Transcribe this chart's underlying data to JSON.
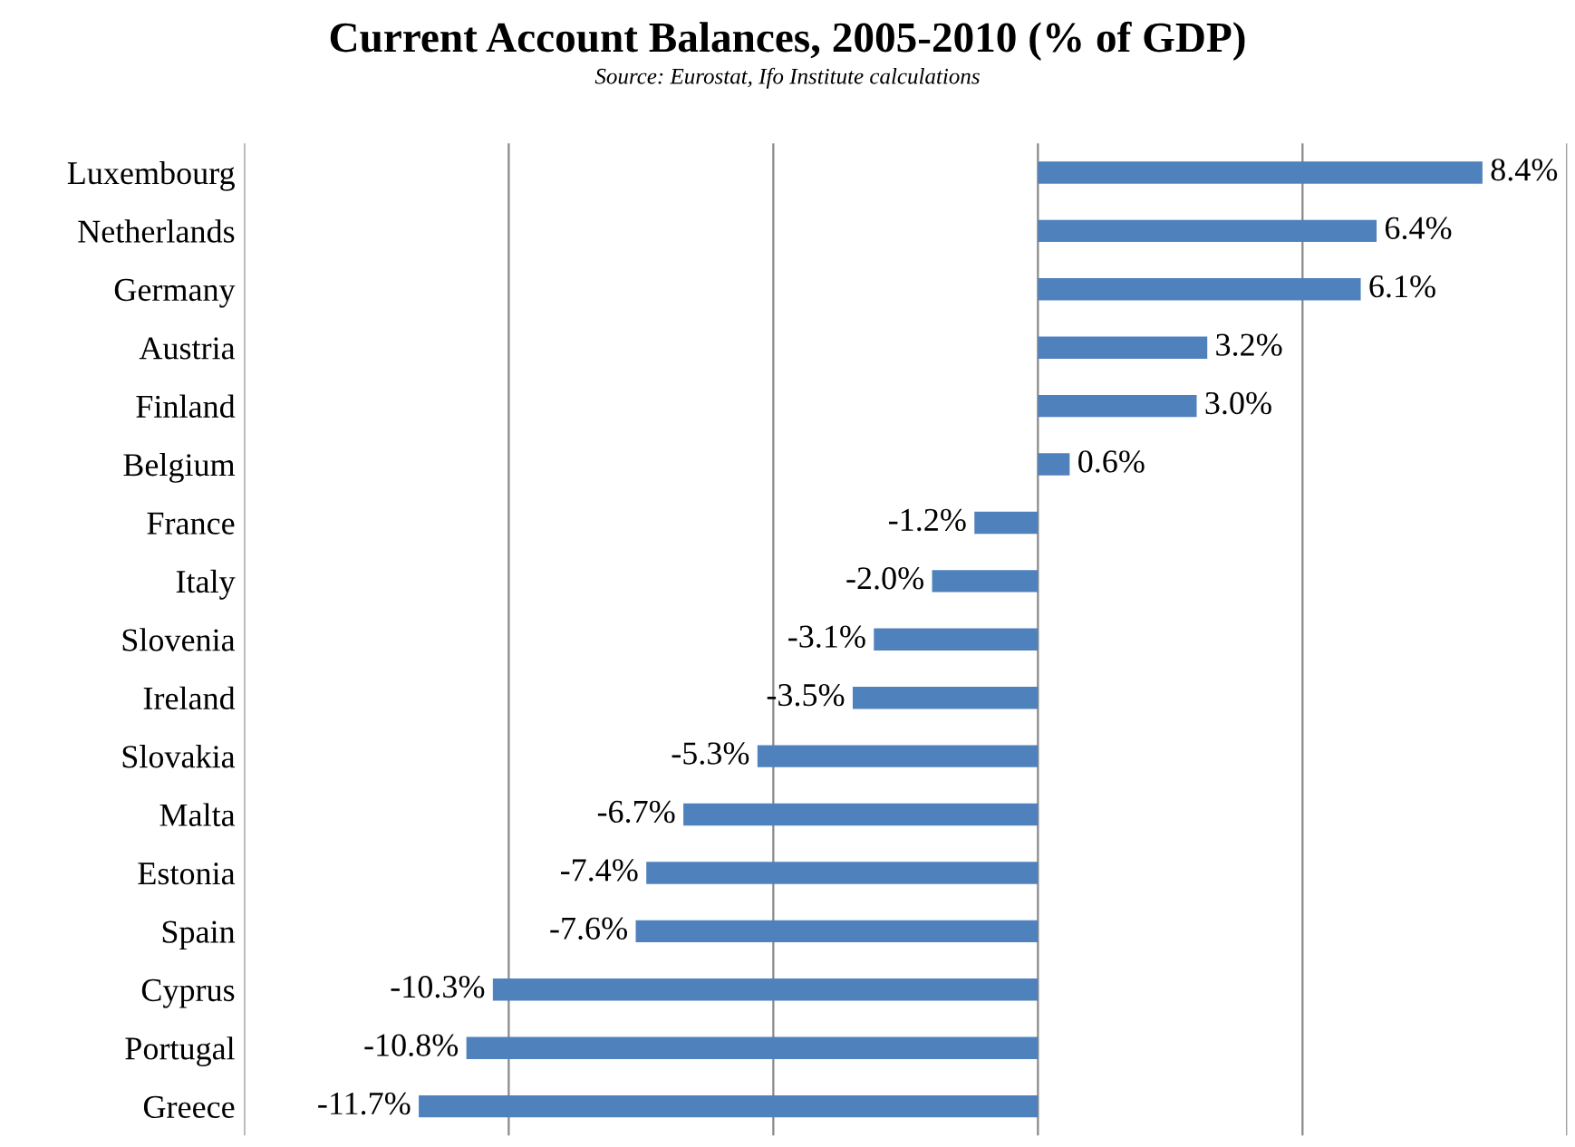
{
  "chart_data": {
    "type": "bar",
    "orientation": "horizontal",
    "title": "Current Account Balances, 2005-2010 (% of GDP)",
    "subtitle": "Source: Eurostat, Ifo Institute calculations",
    "categories": [
      "Luxembourg",
      "Netherlands",
      "Germany",
      "Austria",
      "Finland",
      "Belgium",
      "France",
      "Italy",
      "Slovenia",
      "Ireland",
      "Slovakia",
      "Malta",
      "Estonia",
      "Spain",
      "Cyprus",
      "Portugal",
      "Greece"
    ],
    "values": [
      8.4,
      6.4,
      6.1,
      3.2,
      3.0,
      0.6,
      -1.2,
      -2.0,
      -3.1,
      -3.5,
      -5.3,
      -6.7,
      -7.4,
      -7.6,
      -10.3,
      -10.8,
      -11.7
    ],
    "value_labels": [
      "8.4%",
      "6.4%",
      "6.1%",
      "3.2%",
      "3.0%",
      "0.6%",
      "-1.2%",
      "-2.0%",
      "-3.1%",
      "-3.5%",
      "-5.3%",
      "-6.7%",
      "-7.4%",
      "-7.6%",
      "-10.3%",
      "-10.8%",
      "-11.7%"
    ],
    "color": "#4f81bd",
    "xlim": [
      -15,
      10
    ],
    "xticks": [
      {
        "value": -15,
        "label": null
      },
      {
        "value": -10,
        "label": null
      },
      {
        "value": -5,
        "label": null
      },
      {
        "value": 0,
        "label": null
      },
      {
        "value": 5,
        "label": null
      },
      {
        "value": 10,
        "label": null
      }
    ],
    "grid": "x",
    "tick_labels": "y",
    "legend": false
  }
}
